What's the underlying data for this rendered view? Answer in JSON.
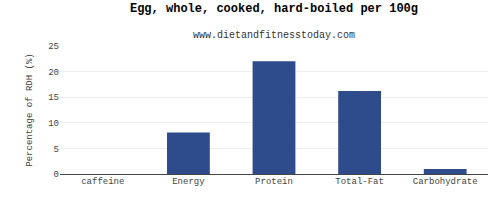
{
  "chart_data": {
    "type": "bar",
    "title": "Egg, whole, cooked, hard-boiled per 100g",
    "subtitle": "www.dietandfitnesstoday.com",
    "ylabel": "Percentage of RDH (%)",
    "categories": [
      "caffeine",
      "Energy",
      "Protein",
      "Total-Fat",
      "Carbohydrate"
    ],
    "values": [
      0,
      8.1,
      22,
      16.2,
      1.0
    ],
    "color": "#2e4b8c",
    "ylim": [
      0,
      25
    ],
    "yticks": [
      0,
      5,
      10,
      15,
      20,
      25
    ],
    "grid": true
  }
}
